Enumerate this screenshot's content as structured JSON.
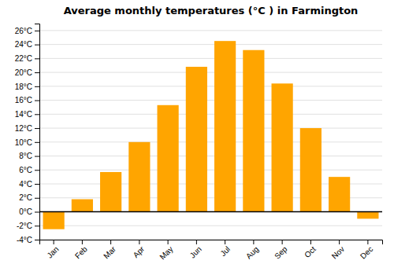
{
  "chart_data": {
    "type": "bar",
    "title": "Average monthly temperatures (°C ) in Farmington",
    "categories": [
      "Jan",
      "Feb",
      "Mar",
      "Apr",
      "May",
      "Jun",
      "Jul",
      "Aug",
      "Sep",
      "Oct",
      "Nov",
      "Dec"
    ],
    "values": [
      -2.5,
      1.8,
      5.7,
      10.0,
      15.3,
      20.8,
      24.5,
      23.2,
      18.4,
      12.0,
      5.0,
      -1.0
    ],
    "color": "#FFA500",
    "ylim": [
      -4,
      27
    ],
    "yticks": [
      {
        "value": -4,
        "label": "-4°C"
      },
      {
        "value": -2,
        "label": "-2°C"
      },
      {
        "value": 0,
        "label": "0°C"
      },
      {
        "value": 2,
        "label": "2°C"
      },
      {
        "value": 4,
        "label": "4°C"
      },
      {
        "value": 6,
        "label": "6°C"
      },
      {
        "value": 8,
        "label": "8°C"
      },
      {
        "value": 10,
        "label": "10°C"
      },
      {
        "value": 12,
        "label": "12°C"
      },
      {
        "value": 14,
        "label": "14°C"
      },
      {
        "value": 16,
        "label": "16°C"
      },
      {
        "value": 18,
        "label": "18°C"
      },
      {
        "value": 20,
        "label": "20°C"
      },
      {
        "value": 22,
        "label": "22°C"
      },
      {
        "value": 24,
        "label": "24°C"
      },
      {
        "value": 26,
        "label": "26°C"
      }
    ],
    "grid": true
  }
}
